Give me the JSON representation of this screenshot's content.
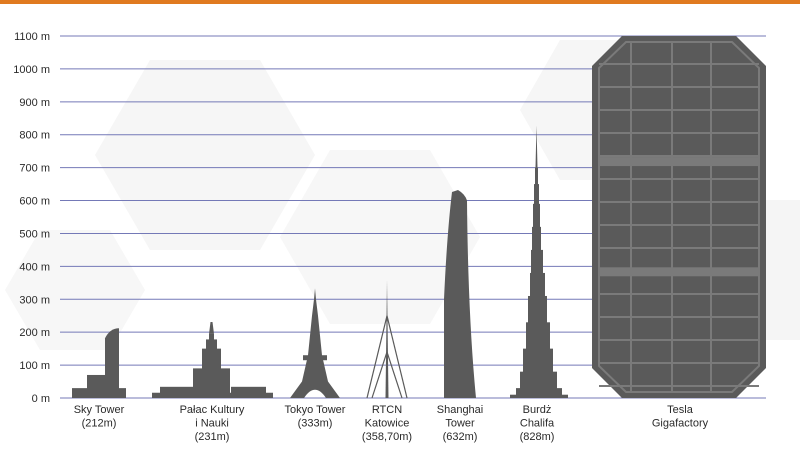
{
  "colors": {
    "accent_bar": "#E07A1F",
    "grid": "#7479B7",
    "building": "#5A5A5A",
    "building_grid": "#7A7A7A",
    "text": "#2A2A2A",
    "background_hex": "#F4F4F4"
  },
  "chart_data": {
    "type": "bar",
    "title": "",
    "xlabel": "",
    "ylabel": "",
    "ylim": [
      0,
      1100
    ],
    "y_unit": "m",
    "y_ticks": [
      {
        "value": 0,
        "label": "0 m"
      },
      {
        "value": 100,
        "label": "100 m"
      },
      {
        "value": 200,
        "label": "200 m"
      },
      {
        "value": 300,
        "label": "300 m"
      },
      {
        "value": 400,
        "label": "400 m"
      },
      {
        "value": 500,
        "label": "500 m"
      },
      {
        "value": 600,
        "label": "600 m"
      },
      {
        "value": 700,
        "label": "700 m"
      },
      {
        "value": 800,
        "label": "800 m"
      },
      {
        "value": 900,
        "label": "900 m"
      },
      {
        "value": 1000,
        "label": "1000 m"
      },
      {
        "value": 1100,
        "label": "1100 m"
      }
    ],
    "grid": true,
    "categories": [
      {
        "id": "sky-tower",
        "label_lines": [
          "Sky Tower",
          "(212m)"
        ],
        "height": 212
      },
      {
        "id": "palac-kultury",
        "label_lines": [
          "Pałac Kultury",
          "i Nauki",
          "(231m)"
        ],
        "height": 231
      },
      {
        "id": "tokyo-tower",
        "label_lines": [
          "Tokyo Tower",
          "(333m)"
        ],
        "height": 333
      },
      {
        "id": "rtcn-katowice",
        "label_lines": [
          "RTCN",
          "Katowice",
          "(358,70m)"
        ],
        "height": 358.7
      },
      {
        "id": "shanghai-tower",
        "label_lines": [
          "Shanghai",
          "Tower",
          "(632m)"
        ],
        "height": 632
      },
      {
        "id": "burdz-chalifa",
        "label_lines": [
          "Burdż",
          "Chalifa",
          "(828m)"
        ],
        "height": 828
      },
      {
        "id": "tesla-gigafactory",
        "label_lines": [
          "Tesla",
          "Gigafactory"
        ],
        "height": 1100
      }
    ]
  }
}
